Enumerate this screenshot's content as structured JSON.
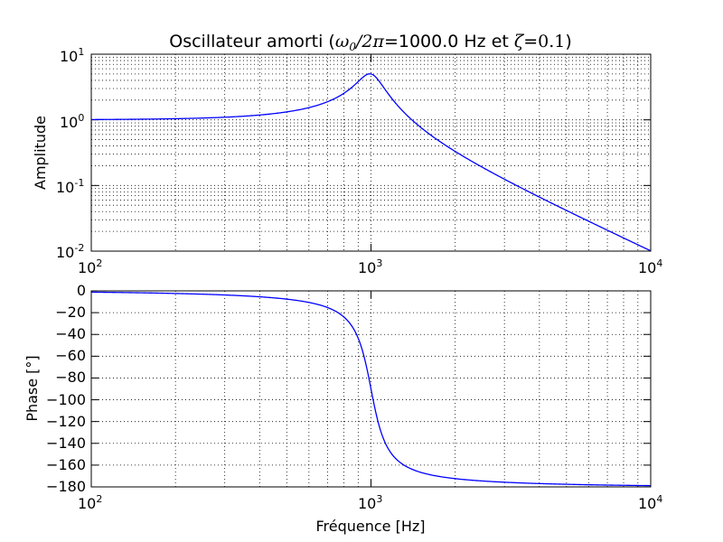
{
  "chart_data": {
    "type": "line",
    "title": {
      "prefix": "Oscillateur amorti (",
      "omega_expr": "ω",
      "omega_sub": "0",
      "omega_rest": "/2π",
      "freq_text": "=1000.0 Hz et ",
      "zeta_expr": "ζ",
      "zeta_rest": "=0.1",
      "suffix": ")"
    },
    "x_scale": "log",
    "x_range": [
      100,
      10000
    ],
    "x_ticks": [
      {
        "base": "10",
        "exp": "2"
      },
      {
        "base": "10",
        "exp": "3"
      },
      {
        "base": "10",
        "exp": "4"
      }
    ],
    "xlabel": "Fréquence [Hz]",
    "grid": true,
    "line_color": "#0000ff",
    "f0_hz": 1000.0,
    "zeta": 0.1,
    "subplots": [
      {
        "name": "amplitude",
        "ylabel": "Amplitude",
        "y_scale": "log",
        "y_range": [
          0.01,
          10
        ],
        "y_ticks": [
          {
            "base": "10",
            "exp": "1"
          },
          {
            "base": "10",
            "exp": "0"
          },
          {
            "base": "10",
            "exp": "-1"
          },
          {
            "base": "10",
            "exp": "-2"
          }
        ],
        "series": [
          {
            "x": [
              100,
              200,
              300,
              400,
              500,
              600,
              700,
              800,
              900,
              950,
              1000,
              1050,
              1100,
              1200,
              1300,
              1500,
              1700,
              2000,
              3000,
              5000,
              7000,
              10000
            ],
            "y": [
              1.01,
              1.04,
              1.1,
              1.19,
              1.33,
              1.56,
              1.92,
              2.55,
              3.84,
              4.57,
              5.0,
              4.73,
              4.13,
              2.85,
              1.93,
              0.77,
              0.51,
              0.33,
              0.125,
              0.042,
              0.021,
              0.0101
            ]
          }
        ]
      },
      {
        "name": "phase",
        "ylabel": "Phase [°]",
        "y_scale": "linear",
        "y_range": [
          -180,
          0
        ],
        "y_ticks": [
          "0",
          "−20",
          "−40",
          "−60",
          "−80",
          "−100",
          "−120",
          "−140",
          "−160",
          "−180"
        ],
        "series": [
          {
            "x": [
              100,
              200,
              300,
              400,
              500,
              600,
              700,
              800,
              850,
              900,
              950,
              1000,
              1050,
              1100,
              1150,
              1200,
              1300,
              1500,
              1700,
              2000,
              3000,
              5000,
              7000,
              10000
            ],
            "y": [
              -1.2,
              -2.4,
              -3.8,
              -5.4,
              -7.6,
              -10.6,
              -15.3,
              -23.9,
              -30.6,
              -43.5,
              -62.9,
              -90.0,
              -115.6,
              -133.8,
              -146.4,
              -151.4,
              -160.3,
              -166.7,
              -170.1,
              -172.4,
              -175.7,
              -177.6,
              -178.3,
              -178.8
            ]
          }
        ]
      }
    ]
  }
}
